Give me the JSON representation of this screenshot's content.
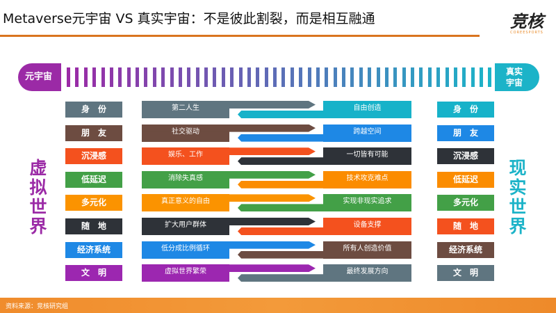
{
  "header": {
    "title": "Metaverse元宇宙 VS 真实宇宙：不是彼此割裂，而是相互融通",
    "logo_text": "竞核",
    "logo_sub": "COREESPORTS"
  },
  "scale": {
    "left_label": "元宇宙",
    "right_label_1": "真实",
    "right_label_2": "宇宙",
    "left_color": "#9b2aa6",
    "right_color": "#1cb3c8"
  },
  "side_labels": {
    "left": [
      "虚",
      "拟",
      "世",
      "界"
    ],
    "right": [
      "现",
      "实",
      "世",
      "界"
    ],
    "left_color": "#9b2aa6",
    "right_color": "#1cb3c8"
  },
  "rows": [
    {
      "left": "身　份",
      "virtual": "第二人生",
      "real": "自由创造",
      "right": "身　份",
      "left_color": "#5f7580",
      "right_color": "#17b2c9"
    },
    {
      "left": "朋　友",
      "virtual": "社交驱动",
      "real": "跨越空间",
      "right": "朋　友",
      "left_color": "#6d4c41",
      "right_color": "#1e88e5"
    },
    {
      "left": "沉浸感",
      "virtual": "娱乐、工作",
      "real": "一切皆有可能",
      "right": "沉浸感",
      "left_color": "#f4511e",
      "right_color": "#2e3238"
    },
    {
      "left": "低延迟",
      "virtual": "消除失真感",
      "real": "技术攻克难点",
      "right": "低延迟",
      "left_color": "#43a047",
      "right_color": "#fb8c00"
    },
    {
      "left": "多元化",
      "virtual": "真正意义的自由",
      "real": "实现非现实追求",
      "right": "多元化",
      "left_color": "#fb9300",
      "right_color": "#43a047"
    },
    {
      "left": "随　地",
      "virtual": "扩大用户群体",
      "real": "设备支撑",
      "right": "随　地",
      "left_color": "#2e3238",
      "right_color": "#f4511e"
    },
    {
      "left": "经济系统",
      "virtual": "低分成比例循环",
      "real": "所有人创造价值",
      "right": "经济系统",
      "left_color": "#1e88e5",
      "right_color": "#6d4c41"
    },
    {
      "left": "文　明",
      "virtual": "虚拟世界繁荣",
      "real": "最终发展方向",
      "right": "文　明",
      "left_color": "#9c27b0",
      "right_color": "#5f7580"
    }
  ],
  "footer": {
    "source": "资料来源：竞核研究组"
  }
}
